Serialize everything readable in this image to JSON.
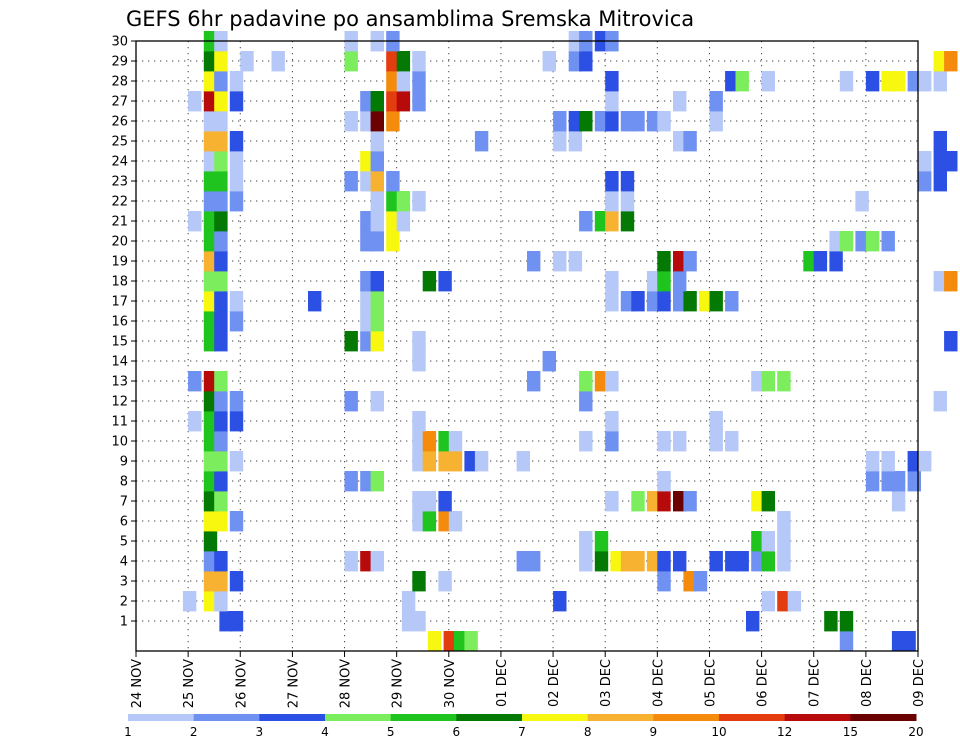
{
  "chart_data": {
    "type": "heatmap",
    "title": "GEFS 6hr padavine po ansamblima Sremska Mitrovica",
    "x_labels": [
      "24 NOV",
      "25 NOV",
      "26 NOV",
      "27 NOV",
      "28 NOV",
      "29 NOV",
      "30 NOV",
      "01 DEC",
      "02 DEC",
      "03 DEC",
      "04 DEC",
      "05 DEC",
      "06 DEC",
      "07 DEC",
      "08 DEC",
      "09 DEC"
    ],
    "y_labels": [
      "1",
      "2",
      "3",
      "4",
      "5",
      "6",
      "7",
      "8",
      "9",
      "10",
      "11",
      "12",
      "13",
      "14",
      "15",
      "16",
      "17",
      "18",
      "19",
      "20",
      "21",
      "22",
      "23",
      "24",
      "25",
      "26",
      "27",
      "28",
      "29",
      "30"
    ],
    "grid": true,
    "legend_placement": "bottom",
    "colorbar": {
      "labels": [
        "1",
        "2",
        "3",
        "4",
        "5",
        "6",
        "7",
        "8",
        "9",
        "10",
        "12",
        "15",
        "20"
      ],
      "colors": [
        "#b5c8f7",
        "#6f91f2",
        "#2b50e3",
        "#7cee5d",
        "#1fc41f",
        "#047a04",
        "#f7f70f",
        "#f8b232",
        "#f58b0c",
        "#e33c0e",
        "#b70b0b",
        "#6b0000"
      ]
    },
    "x_steps_per_day": 4,
    "members": {
      "0": [
        [
          5.6,
          "a6"
        ],
        [
          5.9,
          "a9"
        ],
        [
          6.1,
          "a4"
        ],
        [
          6.3,
          "a3"
        ],
        [
          13.5,
          "a1"
        ],
        [
          14.5,
          "a2"
        ],
        [
          14.7,
          "a2"
        ]
      ],
      "1": [
        [
          1.6,
          "a2"
        ],
        [
          1.8,
          "a2"
        ],
        [
          5.1,
          "a0"
        ],
        [
          5.3,
          "a0"
        ],
        [
          11.7,
          "a2"
        ],
        [
          13.2,
          "a5"
        ],
        [
          13.5,
          "a5"
        ]
      ],
      "2": [
        [
          0.9,
          "a0"
        ],
        [
          1.3,
          "a6"
        ],
        [
          1.5,
          "a0"
        ],
        [
          5.1,
          "a0"
        ],
        [
          8.0,
          "a2"
        ],
        [
          12.0,
          "a0"
        ],
        [
          12.3,
          "a9"
        ],
        [
          12.5,
          "a0"
        ]
      ],
      "3": [
        [
          1.3,
          "a7"
        ],
        [
          1.5,
          "a7"
        ],
        [
          1.8,
          "a2"
        ],
        [
          5.3,
          "a5"
        ],
        [
          5.8,
          "a0"
        ],
        [
          10.0,
          "a1"
        ],
        [
          10.5,
          "a8"
        ],
        [
          10.7,
          "a1"
        ]
      ],
      "4": [
        [
          1.3,
          "a1"
        ],
        [
          1.5,
          "a2"
        ],
        [
          4.0,
          "a0"
        ],
        [
          4.3,
          "a10"
        ],
        [
          4.5,
          "a0"
        ],
        [
          7.3,
          "a1"
        ],
        [
          7.5,
          "a1"
        ],
        [
          8.5,
          "a0"
        ],
        [
          8.8,
          "a5"
        ],
        [
          9.1,
          "a6"
        ],
        [
          9.3,
          "a7"
        ],
        [
          9.5,
          "a7"
        ],
        [
          9.8,
          "a7"
        ],
        [
          10.0,
          "a2"
        ],
        [
          10.3,
          "a2"
        ],
        [
          11.0,
          "a2"
        ],
        [
          11.3,
          "a2"
        ],
        [
          11.5,
          "a2"
        ],
        [
          11.8,
          "a1"
        ],
        [
          12.0,
          "a4"
        ],
        [
          12.3,
          "a0"
        ]
      ],
      "5": [
        [
          1.3,
          "a5"
        ],
        [
          8.5,
          "a0"
        ],
        [
          8.8,
          "a4"
        ],
        [
          11.8,
          "a4"
        ],
        [
          12.0,
          "a0"
        ],
        [
          12.3,
          "a0"
        ]
      ],
      "6": [
        [
          1.3,
          "a6"
        ],
        [
          1.5,
          "a6"
        ],
        [
          1.8,
          "a1"
        ],
        [
          5.3,
          "a0"
        ],
        [
          5.5,
          "a4"
        ],
        [
          5.8,
          "a8"
        ],
        [
          6.0,
          "a0"
        ],
        [
          12.3,
          "a0"
        ]
      ],
      "7": [
        [
          1.3,
          "a5"
        ],
        [
          1.5,
          "a3"
        ],
        [
          5.3,
          "a0"
        ],
        [
          5.5,
          "a0"
        ],
        [
          5.8,
          "a2"
        ],
        [
          9.0,
          "a0"
        ],
        [
          9.5,
          "a3"
        ],
        [
          9.8,
          "a7"
        ],
        [
          10.0,
          "a10"
        ],
        [
          10.3,
          "a11"
        ],
        [
          10.5,
          "a1"
        ],
        [
          11.8,
          "a6"
        ],
        [
          12.0,
          "a5"
        ],
        [
          14.5,
          "a0"
        ]
      ],
      "8": [
        [
          1.3,
          "a4"
        ],
        [
          1.5,
          "a2"
        ],
        [
          4.0,
          "a1"
        ],
        [
          4.3,
          "a1"
        ],
        [
          4.5,
          "a3"
        ],
        [
          10.0,
          "a0"
        ],
        [
          14.0,
          "a1"
        ],
        [
          14.3,
          "a1"
        ],
        [
          14.5,
          "a1"
        ],
        [
          14.8,
          "a1"
        ]
      ],
      "9": [
        [
          1.3,
          "a3"
        ],
        [
          1.5,
          "a3"
        ],
        [
          1.8,
          "a0"
        ],
        [
          5.3,
          "a0"
        ],
        [
          5.5,
          "a7"
        ],
        [
          5.8,
          "a7"
        ],
        [
          6.0,
          "a7"
        ],
        [
          6.3,
          "a2"
        ],
        [
          6.5,
          "a0"
        ],
        [
          7.3,
          "a0"
        ],
        [
          14.0,
          "a0"
        ],
        [
          14.3,
          "a0"
        ],
        [
          14.8,
          "a2"
        ],
        [
          15.0,
          "a0"
        ]
      ],
      "10": [
        [
          1.3,
          "a4"
        ],
        [
          1.5,
          "a1"
        ],
        [
          5.3,
          "a0"
        ],
        [
          5.5,
          "a8"
        ],
        [
          5.8,
          "a4"
        ],
        [
          6.0,
          "a0"
        ],
        [
          8.5,
          "a0"
        ],
        [
          9.0,
          "a1"
        ],
        [
          10.0,
          "a0"
        ],
        [
          10.3,
          "a0"
        ],
        [
          11.0,
          "a0"
        ],
        [
          11.3,
          "a0"
        ]
      ],
      "11": [
        [
          1.0,
          "a0"
        ],
        [
          1.3,
          "a4"
        ],
        [
          1.5,
          "a2"
        ],
        [
          1.8,
          "a2"
        ],
        [
          5.3,
          "a0"
        ],
        [
          9.0,
          "a0"
        ],
        [
          11.0,
          "a0"
        ]
      ],
      "12": [
        [
          1.3,
          "a5"
        ],
        [
          1.5,
          "a1"
        ],
        [
          1.8,
          "a1"
        ],
        [
          4.0,
          "a1"
        ],
        [
          4.5,
          "a0"
        ],
        [
          8.5,
          "a1"
        ],
        [
          15.3,
          "a0"
        ]
      ],
      "13": [
        [
          1.0,
          "a1"
        ],
        [
          1.3,
          "a10"
        ],
        [
          1.5,
          "a3"
        ],
        [
          7.5,
          "a1"
        ],
        [
          8.5,
          "a3"
        ],
        [
          8.8,
          "a8"
        ],
        [
          9.0,
          "a0"
        ],
        [
          11.8,
          "a0"
        ],
        [
          12.0,
          "a3"
        ],
        [
          12.3,
          "a3"
        ]
      ],
      "14": [
        [
          5.3,
          "a0"
        ],
        [
          7.8,
          "a1"
        ]
      ],
      "15": [
        [
          1.3,
          "a4"
        ],
        [
          1.5,
          "a2"
        ],
        [
          4.0,
          "a5"
        ],
        [
          4.3,
          "a1"
        ],
        [
          4.5,
          "a6"
        ],
        [
          5.3,
          "a0"
        ],
        [
          15.5,
          "a2"
        ]
      ],
      "16": [
        [
          1.3,
          "a4"
        ],
        [
          1.5,
          "a2"
        ],
        [
          1.8,
          "a1"
        ],
        [
          4.3,
          "a0"
        ],
        [
          4.5,
          "a3"
        ]
      ],
      "17": [
        [
          1.3,
          "a6"
        ],
        [
          1.5,
          "a2"
        ],
        [
          1.8,
          "a0"
        ],
        [
          3.3,
          "a2"
        ],
        [
          4.3,
          "a0"
        ],
        [
          4.5,
          "a3"
        ],
        [
          9.0,
          "a0"
        ],
        [
          9.3,
          "a1"
        ],
        [
          9.5,
          "a2"
        ],
        [
          9.8,
          "a1"
        ],
        [
          10.0,
          "a2"
        ],
        [
          10.3,
          "a1"
        ],
        [
          10.5,
          "a5"
        ],
        [
          10.8,
          "a6"
        ],
        [
          11.0,
          "a5"
        ],
        [
          11.3,
          "a1"
        ]
      ],
      "18": [
        [
          1.3,
          "a3"
        ],
        [
          1.5,
          "a3"
        ],
        [
          4.3,
          "a1"
        ],
        [
          4.5,
          "a2"
        ],
        [
          5.5,
          "a5"
        ],
        [
          5.8,
          "a2"
        ],
        [
          9.0,
          "a0"
        ],
        [
          9.8,
          "a0"
        ],
        [
          10.0,
          "a4"
        ],
        [
          10.3,
          "a1"
        ],
        [
          15.3,
          "a0"
        ],
        [
          15.5,
          "a8"
        ]
      ],
      "19": [
        [
          1.3,
          "a7"
        ],
        [
          1.5,
          "a2"
        ],
        [
          7.5,
          "a1"
        ],
        [
          8.0,
          "a0"
        ],
        [
          8.3,
          "a0"
        ],
        [
          10.0,
          "a5"
        ],
        [
          10.3,
          "a10"
        ],
        [
          10.5,
          "a1"
        ],
        [
          12.8,
          "a4"
        ],
        [
          13.0,
          "a2"
        ],
        [
          13.3,
          "a2"
        ]
      ],
      "20": [
        [
          1.3,
          "a4"
        ],
        [
          1.5,
          "a1"
        ],
        [
          4.3,
          "a1"
        ],
        [
          4.5,
          "a1"
        ],
        [
          4.8,
          "a6"
        ],
        [
          13.3,
          "a0"
        ],
        [
          13.5,
          "a3"
        ],
        [
          13.8,
          "a1"
        ],
        [
          14.0,
          "a3"
        ],
        [
          14.3,
          "a1"
        ]
      ],
      "21": [
        [
          1.0,
          "a0"
        ],
        [
          1.3,
          "a4"
        ],
        [
          1.5,
          "a5"
        ],
        [
          4.3,
          "a1"
        ],
        [
          4.5,
          "a0"
        ],
        [
          4.8,
          "a6"
        ],
        [
          5.0,
          "a0"
        ],
        [
          8.5,
          "a1"
        ],
        [
          8.8,
          "a4"
        ],
        [
          9.0,
          "a7"
        ],
        [
          9.3,
          "a5"
        ]
      ],
      "22": [
        [
          1.3,
          "a1"
        ],
        [
          1.5,
          "a1"
        ],
        [
          1.8,
          "a1"
        ],
        [
          4.5,
          "a0"
        ],
        [
          4.8,
          "a4"
        ],
        [
          5.0,
          "a3"
        ],
        [
          5.3,
          "a0"
        ],
        [
          9.0,
          "a0"
        ],
        [
          9.3,
          "a0"
        ],
        [
          13.8,
          "a0"
        ]
      ],
      "23": [
        [
          1.3,
          "a4"
        ],
        [
          1.5,
          "a4"
        ],
        [
          1.8,
          "a0"
        ],
        [
          4.0,
          "a1"
        ],
        [
          4.3,
          "a0"
        ],
        [
          4.5,
          "a7"
        ],
        [
          4.8,
          "a1"
        ],
        [
          9.0,
          "a2"
        ],
        [
          9.3,
          "a2"
        ],
        [
          15.0,
          "a1"
        ],
        [
          15.3,
          "a2"
        ]
      ],
      "24": [
        [
          1.3,
          "a0"
        ],
        [
          1.5,
          "a3"
        ],
        [
          1.8,
          "a0"
        ],
        [
          4.3,
          "a6"
        ],
        [
          4.5,
          "a1"
        ],
        [
          15.0,
          "a0"
        ],
        [
          15.3,
          "a2"
        ],
        [
          15.5,
          "a2"
        ]
      ],
      "25": [
        [
          1.3,
          "a7"
        ],
        [
          1.5,
          "a7"
        ],
        [
          1.8,
          "a2"
        ],
        [
          4.5,
          "a0"
        ],
        [
          6.5,
          "a1"
        ],
        [
          8.0,
          "a0"
        ],
        [
          8.3,
          "a0"
        ],
        [
          10.3,
          "a0"
        ],
        [
          10.5,
          "a1"
        ],
        [
          15.3,
          "a2"
        ]
      ],
      "26": [
        [
          1.3,
          "a0"
        ],
        [
          1.5,
          "a0"
        ],
        [
          4.0,
          "a0"
        ],
        [
          4.3,
          "a0"
        ],
        [
          4.5,
          "a11"
        ],
        [
          4.8,
          "a8"
        ],
        [
          8.0,
          "a1"
        ],
        [
          8.3,
          "a2"
        ],
        [
          8.5,
          "a5"
        ],
        [
          8.8,
          "a1"
        ],
        [
          9.0,
          "a2"
        ],
        [
          9.3,
          "a1"
        ],
        [
          9.5,
          "a1"
        ],
        [
          9.8,
          "a1"
        ],
        [
          10.0,
          "a0"
        ],
        [
          11.0,
          "a0"
        ]
      ],
      "27": [
        [
          1.0,
          "a0"
        ],
        [
          1.3,
          "a10"
        ],
        [
          1.5,
          "a6"
        ],
        [
          1.8,
          "a2"
        ],
        [
          4.3,
          "a1"
        ],
        [
          4.5,
          "a5"
        ],
        [
          4.8,
          "a9"
        ],
        [
          5.0,
          "a10"
        ],
        [
          5.3,
          "a1"
        ],
        [
          9.0,
          "a0"
        ],
        [
          10.3,
          "a0"
        ],
        [
          11.0,
          "a1"
        ]
      ],
      "28": [
        [
          1.3,
          "a6"
        ],
        [
          1.5,
          "a1"
        ],
        [
          1.8,
          "a0"
        ],
        [
          4.8,
          "a8"
        ],
        [
          5.0,
          "a0"
        ],
        [
          5.3,
          "a1"
        ],
        [
          9.0,
          "a2"
        ],
        [
          11.3,
          "a2"
        ],
        [
          11.5,
          "a3"
        ],
        [
          12.0,
          "a0"
        ],
        [
          13.5,
          "a0"
        ],
        [
          14.0,
          "a2"
        ],
        [
          14.3,
          "a6"
        ],
        [
          14.5,
          "a6"
        ],
        [
          14.8,
          "a1"
        ],
        [
          15.0,
          "a0"
        ],
        [
          15.3,
          "a0"
        ]
      ],
      "29": [
        [
          1.3,
          "a5"
        ],
        [
          1.5,
          "a6"
        ],
        [
          2.0,
          "a0"
        ],
        [
          2.6,
          "a0"
        ],
        [
          4.0,
          "a3"
        ],
        [
          4.8,
          "a9"
        ],
        [
          5.0,
          "a5"
        ],
        [
          5.3,
          "a0"
        ],
        [
          7.8,
          "a0"
        ],
        [
          8.3,
          "a1"
        ],
        [
          8.5,
          "a2"
        ],
        [
          15.3,
          "a6"
        ],
        [
          15.5,
          "a8"
        ]
      ],
      "30": [
        [
          1.3,
          "a4"
        ],
        [
          1.5,
          "a0"
        ],
        [
          4.0,
          "a0"
        ],
        [
          4.5,
          "a0"
        ],
        [
          4.8,
          "a1"
        ],
        [
          8.3,
          "a0"
        ],
        [
          8.5,
          "a1"
        ],
        [
          8.8,
          "a2"
        ],
        [
          9.0,
          "a1"
        ]
      ]
    }
  }
}
